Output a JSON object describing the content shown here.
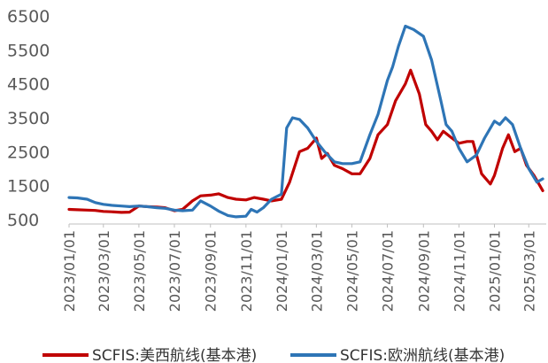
{
  "chart_data": {
    "type": "line",
    "title": "",
    "xlabel": "",
    "ylabel": "",
    "ylim": [
      500,
      6500
    ],
    "y_ticks": [
      500,
      1500,
      2500,
      3500,
      4500,
      5500,
      6500
    ],
    "x_range": [
      "2023-01-01",
      "2025-03-31"
    ],
    "x_tick_labels": [
      "2023/01/01",
      "2023/03/01",
      "2023/05/01",
      "2023/07/01",
      "2023/09/01",
      "2023/11/01",
      "2024/01/01",
      "2024/03/01",
      "2024/05/01",
      "2024/07/01",
      "2024/09/01",
      "2024/11/01",
      "2025/01/01",
      "2025/03/01"
    ],
    "grid": false,
    "legend_position": "bottom",
    "series": [
      {
        "name": "SCFIS:美西航线(基本港)",
        "color": "#C00000",
        "points": [
          [
            "2023-01-01",
            800
          ],
          [
            "2023-01-15",
            790
          ],
          [
            "2023-02-01",
            780
          ],
          [
            "2023-02-15",
            770
          ],
          [
            "2023-03-01",
            740
          ],
          [
            "2023-03-15",
            730
          ],
          [
            "2023-04-01",
            710
          ],
          [
            "2023-04-15",
            720
          ],
          [
            "2023-05-01",
            900
          ],
          [
            "2023-05-15",
            880
          ],
          [
            "2023-06-01",
            870
          ],
          [
            "2023-06-15",
            850
          ],
          [
            "2023-07-01",
            760
          ],
          [
            "2023-07-15",
            800
          ],
          [
            "2023-08-01",
            1050
          ],
          [
            "2023-08-15",
            1200
          ],
          [
            "2023-09-01",
            1220
          ],
          [
            "2023-09-15",
            1260
          ],
          [
            "2023-10-01",
            1150
          ],
          [
            "2023-10-15",
            1100
          ],
          [
            "2023-11-01",
            1080
          ],
          [
            "2023-11-15",
            1150
          ],
          [
            "2023-12-01",
            1100
          ],
          [
            "2023-12-15",
            1050
          ],
          [
            "2024-01-01",
            1100
          ],
          [
            "2024-01-15",
            1600
          ],
          [
            "2024-02-01",
            2500
          ],
          [
            "2024-02-15",
            2600
          ],
          [
            "2024-03-01",
            2900
          ],
          [
            "2024-03-10",
            2300
          ],
          [
            "2024-03-20",
            2450
          ],
          [
            "2024-04-01",
            2100
          ],
          [
            "2024-04-15",
            2000
          ],
          [
            "2024-05-01",
            1850
          ],
          [
            "2024-05-15",
            1850
          ],
          [
            "2024-06-01",
            2300
          ],
          [
            "2024-06-15",
            3000
          ],
          [
            "2024-07-01",
            3300
          ],
          [
            "2024-07-15",
            4000
          ],
          [
            "2024-08-01",
            4500
          ],
          [
            "2024-08-10",
            4900
          ],
          [
            "2024-08-25",
            4200
          ],
          [
            "2024-09-05",
            3300
          ],
          [
            "2024-09-15",
            3100
          ],
          [
            "2024-09-25",
            2850
          ],
          [
            "2024-10-05",
            3100
          ],
          [
            "2024-10-20",
            2900
          ],
          [
            "2024-11-01",
            2750
          ],
          [
            "2024-11-15",
            2800
          ],
          [
            "2024-11-25",
            2800
          ],
          [
            "2024-12-10",
            1850
          ],
          [
            "2024-12-25",
            1550
          ],
          [
            "2025-01-01",
            1800
          ],
          [
            "2025-01-15",
            2600
          ],
          [
            "2025-01-25",
            3000
          ],
          [
            "2025-02-05",
            2500
          ],
          [
            "2025-02-15",
            2600
          ],
          [
            "2025-02-25",
            2100
          ],
          [
            "2025-03-10",
            1800
          ],
          [
            "2025-03-25",
            1350
          ]
        ]
      },
      {
        "name": "SCFIS:欧洲航线(基本港)",
        "color": "#2E75B6",
        "points": [
          [
            "2023-01-01",
            1150
          ],
          [
            "2023-01-15",
            1140
          ],
          [
            "2023-02-01",
            1100
          ],
          [
            "2023-02-15",
            1000
          ],
          [
            "2023-03-01",
            950
          ],
          [
            "2023-03-15",
            920
          ],
          [
            "2023-04-01",
            900
          ],
          [
            "2023-04-15",
            880
          ],
          [
            "2023-05-01",
            900
          ],
          [
            "2023-05-15",
            880
          ],
          [
            "2023-06-01",
            850
          ],
          [
            "2023-06-15",
            830
          ],
          [
            "2023-07-01",
            780
          ],
          [
            "2023-07-15",
            760
          ],
          [
            "2023-08-01",
            780
          ],
          [
            "2023-08-15",
            1050
          ],
          [
            "2023-09-01",
            900
          ],
          [
            "2023-09-15",
            750
          ],
          [
            "2023-10-01",
            620
          ],
          [
            "2023-10-15",
            580
          ],
          [
            "2023-11-01",
            600
          ],
          [
            "2023-11-10",
            800
          ],
          [
            "2023-11-20",
            720
          ],
          [
            "2023-12-01",
            850
          ],
          [
            "2023-12-15",
            1100
          ],
          [
            "2024-01-01",
            1250
          ],
          [
            "2024-01-10",
            3200
          ],
          [
            "2024-01-20",
            3500
          ],
          [
            "2024-02-01",
            3450
          ],
          [
            "2024-02-15",
            3200
          ],
          [
            "2024-03-01",
            2800
          ],
          [
            "2024-03-15",
            2500
          ],
          [
            "2024-04-01",
            2200
          ],
          [
            "2024-04-15",
            2150
          ],
          [
            "2024-05-01",
            2150
          ],
          [
            "2024-05-15",
            2200
          ],
          [
            "2024-06-01",
            3000
          ],
          [
            "2024-06-15",
            3600
          ],
          [
            "2024-07-01",
            4600
          ],
          [
            "2024-07-10",
            5000
          ],
          [
            "2024-07-20",
            5600
          ],
          [
            "2024-08-01",
            6200
          ],
          [
            "2024-08-15",
            6100
          ],
          [
            "2024-09-01",
            5900
          ],
          [
            "2024-09-15",
            5200
          ],
          [
            "2024-10-01",
            4000
          ],
          [
            "2024-10-10",
            3300
          ],
          [
            "2024-10-20",
            3100
          ],
          [
            "2024-11-01",
            2600
          ],
          [
            "2024-11-15",
            2200
          ],
          [
            "2024-12-01",
            2400
          ],
          [
            "2024-12-15",
            2900
          ],
          [
            "2025-01-01",
            3400
          ],
          [
            "2025-01-10",
            3300
          ],
          [
            "2025-01-20",
            3500
          ],
          [
            "2025-02-01",
            3300
          ],
          [
            "2025-02-15",
            2600
          ],
          [
            "2025-03-01",
            2000
          ],
          [
            "2025-03-15",
            1600
          ],
          [
            "2025-03-25",
            1700
          ]
        ]
      }
    ]
  }
}
